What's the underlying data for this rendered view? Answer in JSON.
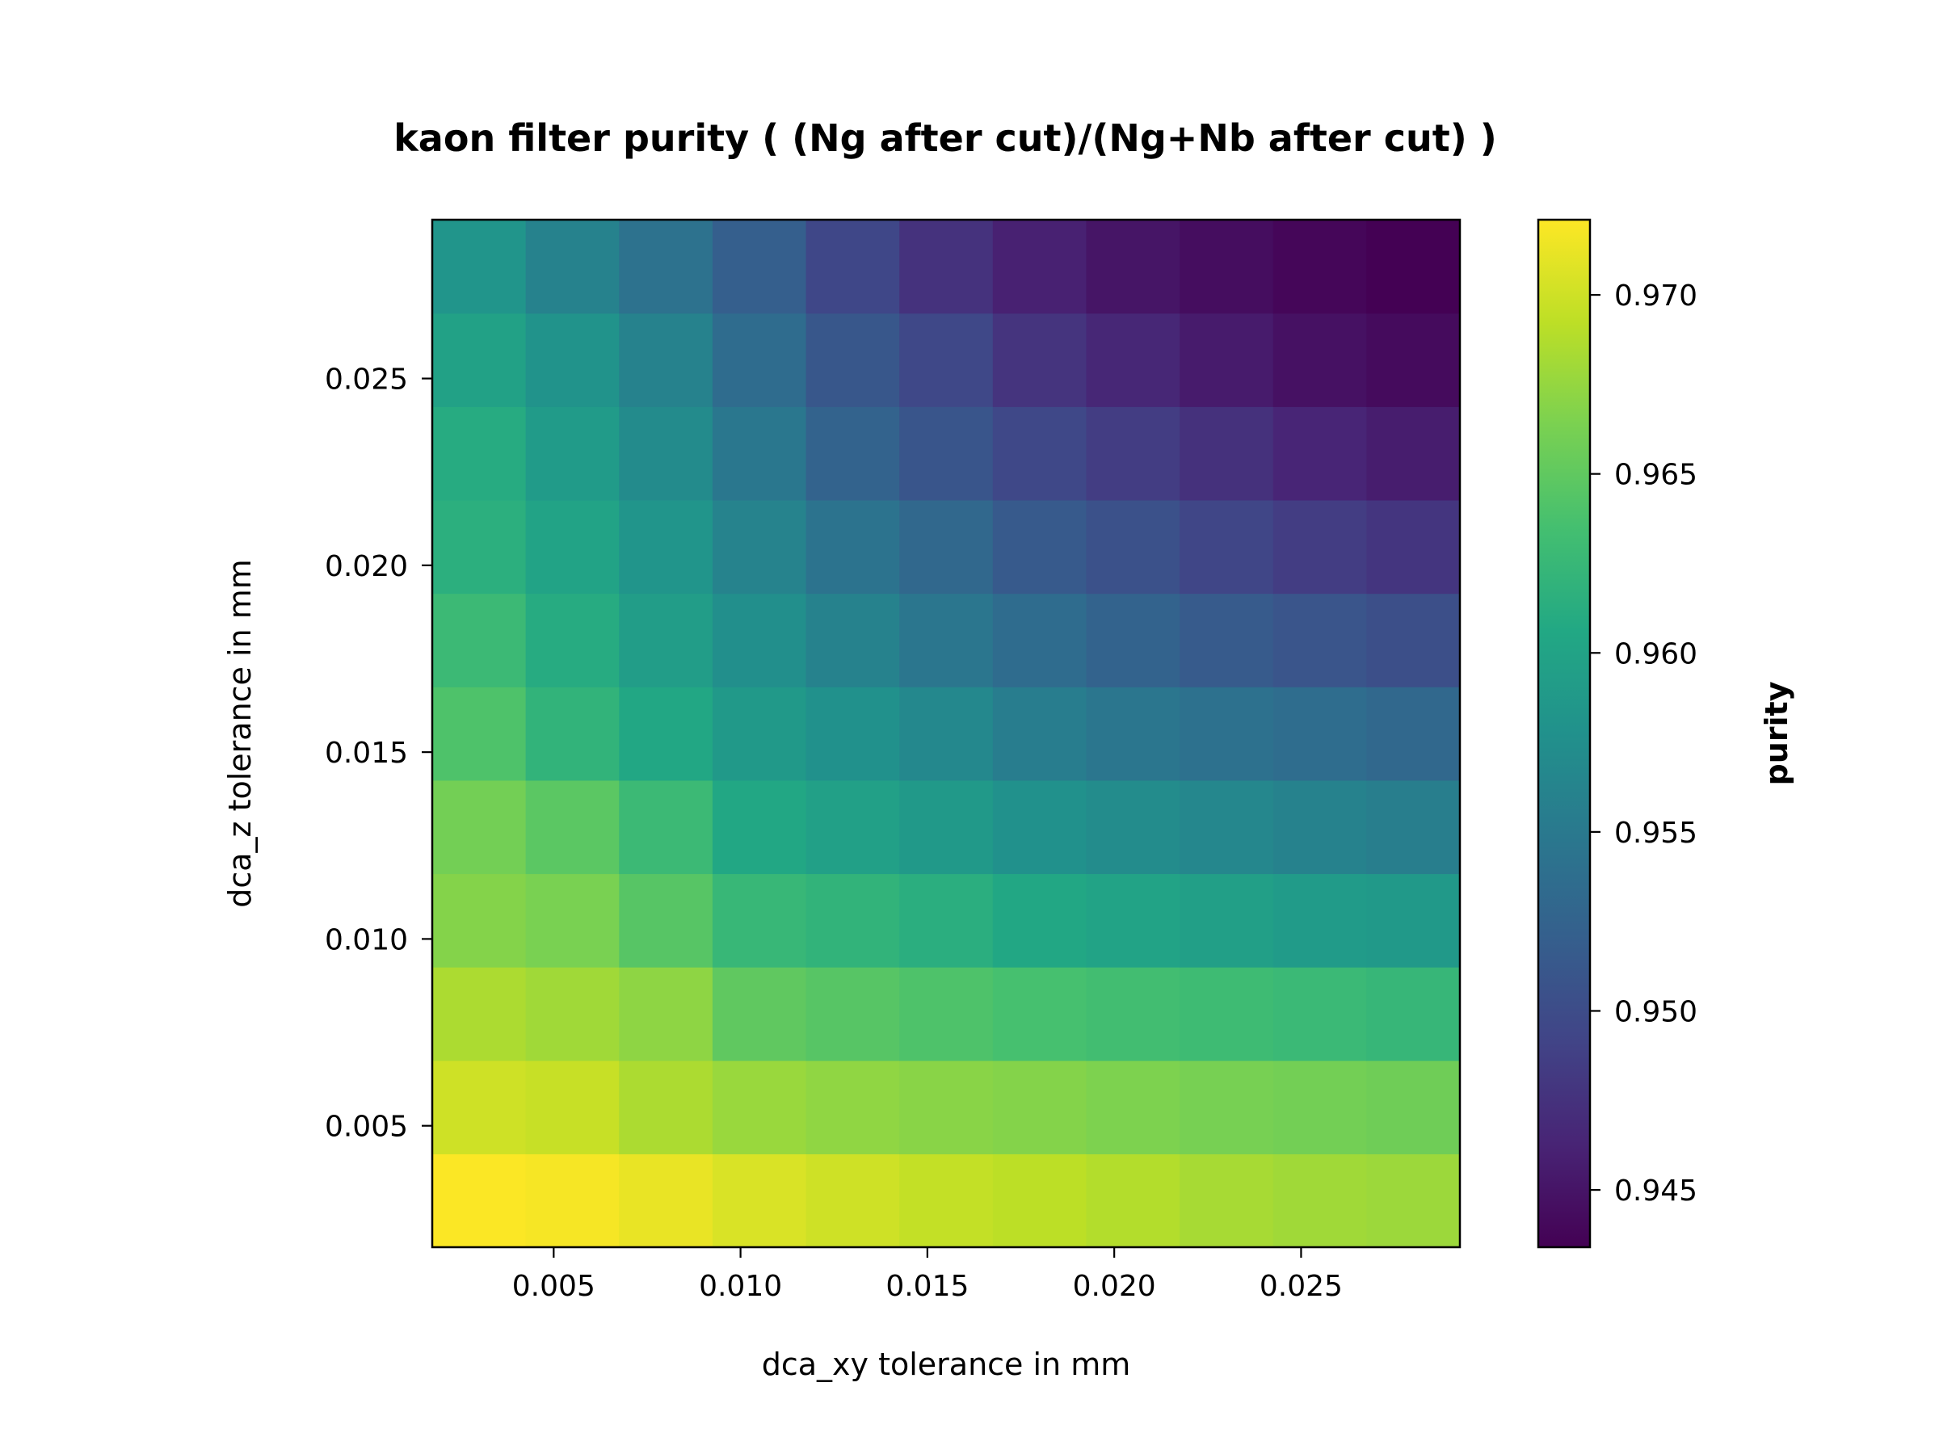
{
  "chart_data": {
    "type": "heatmap",
    "title": "kaon filter purity ( (Ng after cut)/(Ng+Nb after cut) )",
    "xlabel": "dca_xy tolerance in mm",
    "ylabel": "dca_z tolerance in mm",
    "colorbar_label": "purity",
    "colormap": "viridis",
    "x": [
      0.003,
      0.0055,
      0.008,
      0.0105,
      0.013,
      0.0155,
      0.018,
      0.0205,
      0.023,
      0.0255,
      0.028
    ],
    "y": [
      0.003,
      0.0055,
      0.008,
      0.0105,
      0.013,
      0.0155,
      0.018,
      0.0205,
      0.023,
      0.0255,
      0.028
    ],
    "xlim": [
      0.00175,
      0.02925
    ],
    "ylim": [
      0.00175,
      0.02925
    ],
    "x_ticks": [
      0.005,
      0.01,
      0.015,
      0.02,
      0.025
    ],
    "x_tick_labels": [
      "0.005",
      "0.010",
      "0.015",
      "0.020",
      "0.025"
    ],
    "y_ticks": [
      0.005,
      0.01,
      0.015,
      0.02,
      0.025
    ],
    "y_tick_labels": [
      "0.005",
      "0.010",
      "0.015",
      "0.020",
      "0.025"
    ],
    "color_range": [
      0.9434,
      0.9721
    ],
    "colorbar_ticks": [
      0.945,
      0.95,
      0.955,
      0.96,
      0.965,
      0.97
    ],
    "colorbar_tick_labels": [
      "0.945",
      "0.950",
      "0.955",
      "0.960",
      "0.965",
      "0.970"
    ],
    "values": [
      [
        0.972,
        0.9718,
        0.9712,
        0.9705,
        0.97,
        0.9695,
        0.9692,
        0.9688,
        0.9683,
        0.968,
        0.9678
      ],
      [
        0.97,
        0.9697,
        0.9685,
        0.9677,
        0.9673,
        0.967,
        0.9668,
        0.9665,
        0.9662,
        0.966,
        0.9658
      ],
      [
        0.9685,
        0.968,
        0.9672,
        0.965,
        0.9645,
        0.964,
        0.9636,
        0.9633,
        0.963,
        0.9627,
        0.9624
      ],
      [
        0.9668,
        0.9663,
        0.9645,
        0.9625,
        0.962,
        0.9614,
        0.9605,
        0.96,
        0.9595,
        0.959,
        0.9587
      ],
      [
        0.966,
        0.9647,
        0.9628,
        0.9605,
        0.9596,
        0.9587,
        0.9578,
        0.9572,
        0.9566,
        0.956,
        0.9556
      ],
      [
        0.964,
        0.962,
        0.9605,
        0.9588,
        0.9578,
        0.9567,
        0.9555,
        0.9547,
        0.9541,
        0.9536,
        0.9531
      ],
      [
        0.9628,
        0.961,
        0.9592,
        0.9575,
        0.956,
        0.9547,
        0.9535,
        0.9525,
        0.9516,
        0.9509,
        0.9503
      ],
      [
        0.9615,
        0.96,
        0.9582,
        0.9562,
        0.9543,
        0.953,
        0.9515,
        0.9505,
        0.9493,
        0.9485,
        0.9478
      ],
      [
        0.961,
        0.959,
        0.9571,
        0.9548,
        0.9525,
        0.951,
        0.9496,
        0.9485,
        0.9474,
        0.9464,
        0.9457
      ],
      [
        0.9598,
        0.958,
        0.956,
        0.9535,
        0.9512,
        0.9496,
        0.9477,
        0.9465,
        0.9455,
        0.9447,
        0.9442
      ],
      [
        0.9582,
        0.956,
        0.9542,
        0.952,
        0.9495,
        0.9475,
        0.946,
        0.945,
        0.9444,
        0.9438,
        0.9434
      ]
    ]
  }
}
